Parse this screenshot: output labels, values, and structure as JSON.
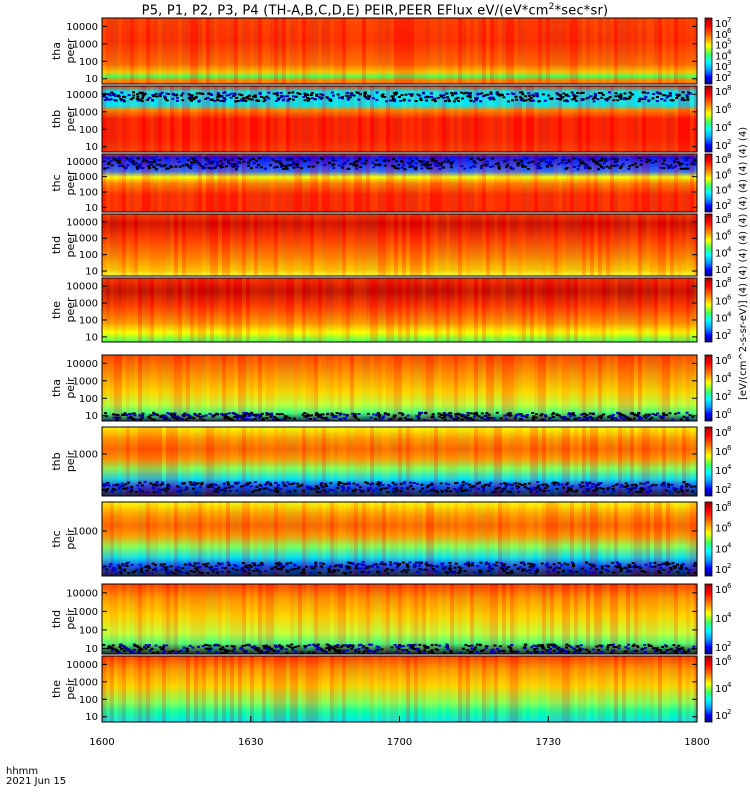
{
  "title": {
    "main": "P5, P1, P2, P3, P4 (TH-A,B,C,D,E) PEIR,PEER EFlux eV/(eV*cm",
    "sup": "2",
    "tail": "*sec*sr)"
  },
  "x_axis": {
    "format_label": "hhmm",
    "date_label": "2021 Jun 15"
  },
  "colorbar_title": "[eV/(cm^2-s-sr-eV)] (4) (4) (4) (4) (4) (4) (4) (4) (4) (4)",
  "colors": {
    "spectrogram_scale": [
      "#000080",
      "#0000ff",
      "#00a0ff",
      "#00ffff",
      "#40ff60",
      "#ffff00",
      "#ff8000",
      "#ff0000",
      "#a00000"
    ]
  },
  "chart_data": {
    "type": "heatmap",
    "x": {
      "ticks": [
        "1600",
        "1630",
        "1700",
        "1730",
        "1800"
      ]
    },
    "panels": [
      {
        "name": "tha peer",
        "ylabel_line1": "tha",
        "ylabel_line2": "peer",
        "yticks": [
          "10",
          "100",
          "1000",
          "10000"
        ],
        "log_y": true,
        "ylim": [
          5,
          30000
        ],
        "cb_ticks": [
          "10",
          "10",
          "10",
          "10",
          "10",
          "10"
        ],
        "cb_exps": [
          "2",
          "3",
          "4",
          "5",
          "6",
          "7"
        ]
      },
      {
        "name": "thb peer",
        "ylabel_line1": "thb",
        "ylabel_line2": "peer",
        "yticks": [
          "10",
          "100",
          "1000",
          "10000"
        ],
        "log_y": true,
        "ylim": [
          5,
          30000
        ],
        "cb_ticks": [
          "10",
          "10",
          "10",
          "10"
        ],
        "cb_exps": [
          "2",
          "4",
          "6",
          "8"
        ]
      },
      {
        "name": "thc peer",
        "ylabel_line1": "thc",
        "ylabel_line2": "peer",
        "yticks": [
          "10",
          "100",
          "1000",
          "10000"
        ],
        "log_y": true,
        "ylim": [
          5,
          30000
        ],
        "cb_ticks": [
          "10",
          "10",
          "10",
          "10"
        ],
        "cb_exps": [
          "2",
          "4",
          "6",
          "8"
        ]
      },
      {
        "name": "thd peer",
        "ylabel_line1": "thd",
        "ylabel_line2": "peer",
        "yticks": [
          "10",
          "100",
          "1000",
          "10000"
        ],
        "log_y": true,
        "ylim": [
          5,
          30000
        ],
        "cb_ticks": [
          "10",
          "10",
          "10",
          "10"
        ],
        "cb_exps": [
          "2",
          "4",
          "6",
          "8"
        ]
      },
      {
        "name": "the peer",
        "ylabel_line1": "the",
        "ylabel_line2": "peer",
        "yticks": [
          "10",
          "100",
          "1000",
          "10000"
        ],
        "log_y": true,
        "ylim": [
          5,
          30000
        ],
        "cb_ticks": [
          "10",
          "10",
          "10",
          "10"
        ],
        "cb_exps": [
          "2",
          "4",
          "6",
          "8"
        ]
      },
      {
        "name": "tha peir",
        "ylabel_line1": "tha",
        "ylabel_line2": "peir",
        "yticks": [
          "10",
          "100",
          "1000",
          "10000"
        ],
        "log_y": true,
        "ylim": [
          5,
          30000
        ],
        "cb_ticks": [
          "10",
          "10",
          "10",
          "10"
        ],
        "cb_exps": [
          "0",
          "2",
          "4",
          "6"
        ]
      },
      {
        "name": "thb peir",
        "ylabel_line1": "thb",
        "ylabel_line2": "peir",
        "yticks": [
          "1000"
        ],
        "log_y": true,
        "ylim": [
          5,
          30000
        ],
        "cb_ticks": [
          "10",
          "10",
          "10",
          "10"
        ],
        "cb_exps": [
          "2",
          "4",
          "6",
          "8"
        ]
      },
      {
        "name": "thc peir",
        "ylabel_line1": "thc",
        "ylabel_line2": "peir",
        "yticks": [
          "1000"
        ],
        "log_y": true,
        "ylim": [
          5,
          30000
        ],
        "cb_ticks": [
          "10",
          "10",
          "10",
          "10"
        ],
        "cb_exps": [
          "2",
          "4",
          "6",
          "8"
        ]
      },
      {
        "name": "thd peir",
        "ylabel_line1": "thd",
        "ylabel_line2": "peir",
        "yticks": [
          "10",
          "100",
          "1000",
          "10000"
        ],
        "log_y": true,
        "ylim": [
          5,
          30000
        ],
        "cb_ticks": [
          "10",
          "10",
          "10"
        ],
        "cb_exps": [
          "2",
          "4",
          "6"
        ]
      },
      {
        "name": "the peir",
        "ylabel_line1": "the",
        "ylabel_line2": "peir",
        "yticks": [
          "10",
          "100",
          "1000",
          "10000"
        ],
        "log_y": true,
        "ylim": [
          5,
          30000
        ],
        "cb_ticks": [
          "10",
          "10",
          "10"
        ],
        "cb_exps": [
          "2",
          "4",
          "6"
        ]
      }
    ]
  }
}
